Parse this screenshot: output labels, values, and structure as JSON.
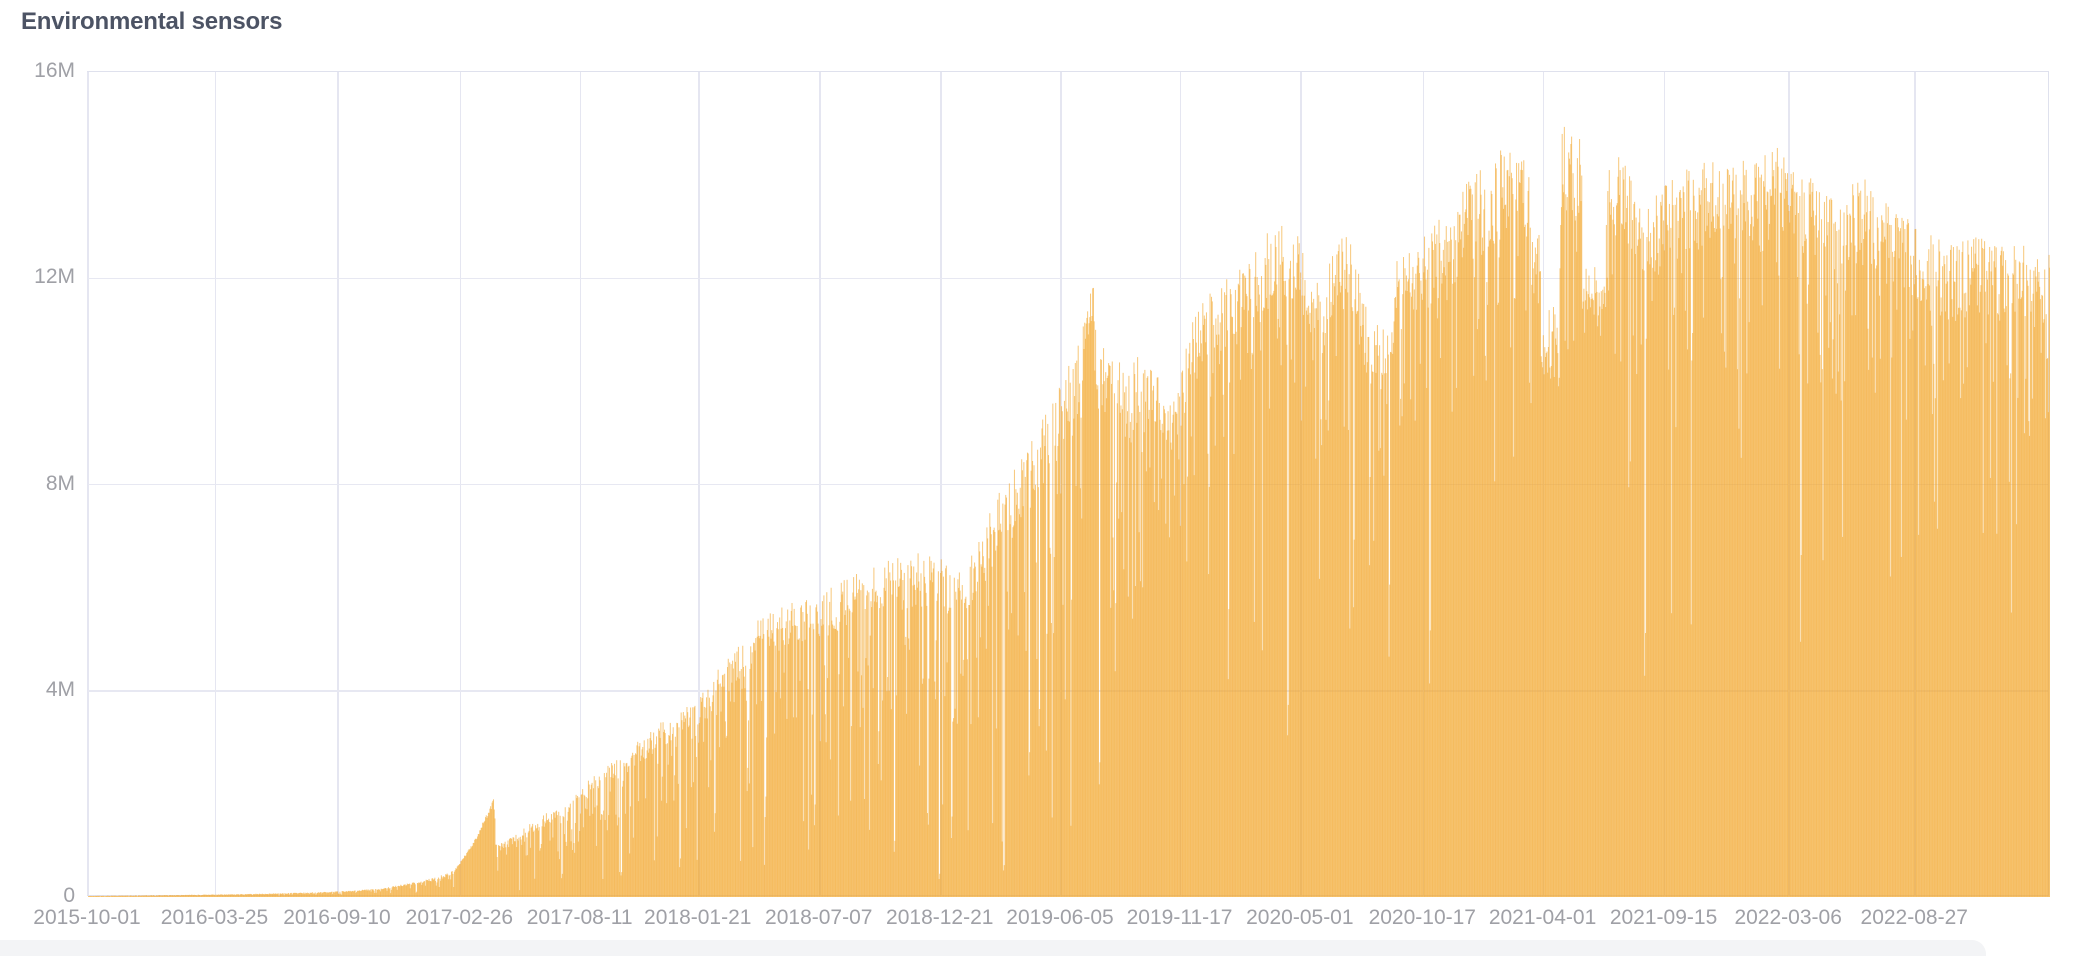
{
  "title": "Environmental sensors",
  "colors": {
    "background": "#FFFFFF",
    "bar": "#F2A425",
    "bar_opacity": 0.6,
    "grid": "#E5E6F1",
    "axis_border": "#DFE1ED",
    "title_text": "#4C5364",
    "tick_text": "#9FA0A6",
    "bottom_band": "#F3F4F6"
  },
  "chart_data": {
    "type": "bar",
    "title": "Environmental sensors",
    "series_name": "Environmental sensors",
    "legend": "none",
    "grid": "on",
    "bar_granularity": "daily",
    "x_start": "2015-10-01",
    "x_end": "2023-03-01",
    "ylim_m": [
      0,
      16
    ],
    "y_ticks": [
      [
        "0",
        0
      ],
      [
        "4M",
        4
      ],
      [
        "8M",
        8
      ],
      [
        "12M",
        12
      ],
      [
        "16M",
        16
      ]
    ],
    "x_ticks": [
      "2015-10-01",
      "2016-03-25",
      "2016-09-10",
      "2017-02-26",
      "2017-08-11",
      "2018-01-21",
      "2018-07-07",
      "2018-12-21",
      "2019-06-05",
      "2019-11-17",
      "2020-05-01",
      "2020-10-17",
      "2021-04-01",
      "2021-09-15",
      "2022-03-06",
      "2022-08-27"
    ],
    "envelope_m": [
      [
        "2015-10-01",
        0.02
      ],
      [
        "2016-01-01",
        0.035
      ],
      [
        "2016-03-25",
        0.05
      ],
      [
        "2016-06-15",
        0.07
      ],
      [
        "2016-09-10",
        0.11
      ],
      [
        "2016-11-10",
        0.17
      ],
      [
        "2016-12-20",
        0.28
      ],
      [
        "2017-01-25",
        0.4
      ],
      [
        "2017-02-17",
        0.52
      ],
      [
        "2017-03-15",
        1.05
      ],
      [
        "2017-04-12",
        1.9
      ],
      [
        "2017-04-17",
        1.0
      ],
      [
        "2017-05-15",
        1.25
      ],
      [
        "2017-06-15",
        1.55
      ],
      [
        "2017-07-20",
        1.85
      ],
      [
        "2017-08-20",
        2.25
      ],
      [
        "2017-09-25",
        2.65
      ],
      [
        "2017-11-01",
        3.1
      ],
      [
        "2017-12-10",
        3.55
      ],
      [
        "2018-01-24",
        3.95
      ],
      [
        "2018-03-01",
        4.7
      ],
      [
        "2018-04-17",
        5.45
      ],
      [
        "2018-05-25",
        5.7
      ],
      [
        "2018-06-29",
        5.9
      ],
      [
        "2018-08-10",
        6.2
      ],
      [
        "2018-09-29",
        6.5
      ],
      [
        "2018-11-23",
        6.7
      ],
      [
        "2019-01-18",
        6.45
      ],
      [
        "2019-02-15",
        7.0
      ],
      [
        "2019-03-04",
        7.7
      ],
      [
        "2019-04-05",
        8.4
      ],
      [
        "2019-05-08",
        9.2
      ],
      [
        "2019-06-10",
        10.2
      ],
      [
        "2019-07-05",
        11.1
      ],
      [
        "2019-07-18",
        12.0
      ],
      [
        "2019-07-26",
        10.9
      ],
      [
        "2019-08-10",
        10.5
      ],
      [
        "2019-09-05",
        10.3
      ],
      [
        "2019-09-25",
        10.6
      ],
      [
        "2019-10-18",
        10.3
      ],
      [
        "2019-10-25",
        9.8
      ],
      [
        "2019-11-12",
        9.7
      ],
      [
        "2019-11-20",
        10.5
      ],
      [
        "2019-12-05",
        11.3
      ],
      [
        "2019-12-23",
        11.8
      ],
      [
        "2020-01-28",
        12.25
      ],
      [
        "2020-02-21",
        12.7
      ],
      [
        "2020-03-20",
        12.95
      ],
      [
        "2020-04-15",
        13.25
      ],
      [
        "2020-05-18",
        12.0
      ],
      [
        "2020-06-01",
        11.8
      ],
      [
        "2020-06-15",
        13.0
      ],
      [
        "2020-07-10",
        12.75
      ],
      [
        "2020-08-02",
        11.25
      ],
      [
        "2020-08-24",
        11.1
      ],
      [
        "2020-09-10",
        12.4
      ],
      [
        "2020-10-10",
        12.65
      ],
      [
        "2020-11-01",
        13.1
      ],
      [
        "2020-11-24",
        13.3
      ],
      [
        "2020-12-15",
        13.9
      ],
      [
        "2021-01-18",
        14.3
      ],
      [
        "2021-02-05",
        14.55
      ],
      [
        "2021-03-08",
        14.45
      ],
      [
        "2021-03-15",
        13.4
      ],
      [
        "2021-03-26",
        13.0
      ],
      [
        "2021-04-24",
        14.7
      ],
      [
        "2021-04-30",
        15.3
      ],
      [
        "2021-05-12",
        14.9
      ],
      [
        "2021-05-24",
        14.6
      ],
      [
        "2021-06-27",
        14.6
      ],
      [
        "2021-07-20",
        14.4
      ],
      [
        "2021-08-08",
        13.8
      ],
      [
        "2021-08-25",
        13.5
      ],
      [
        "2021-09-20",
        13.95
      ],
      [
        "2021-10-20",
        14.2
      ],
      [
        "2021-11-15",
        14.35
      ],
      [
        "2021-12-20",
        14.3
      ],
      [
        "2022-01-20",
        14.4
      ],
      [
        "2022-02-20",
        14.55
      ],
      [
        "2022-03-10",
        14.4
      ],
      [
        "2022-04-10",
        13.85
      ],
      [
        "2022-05-05",
        13.55
      ],
      [
        "2022-06-05",
        13.9
      ],
      [
        "2022-06-25",
        13.95
      ],
      [
        "2022-07-20",
        13.4
      ],
      [
        "2022-08-21",
        13.15
      ],
      [
        "2022-09-20",
        12.8
      ],
      [
        "2022-10-20",
        12.65
      ],
      [
        "2022-11-20",
        12.85
      ],
      [
        "2022-12-20",
        12.6
      ],
      [
        "2023-01-20",
        12.7
      ],
      [
        "2023-02-15",
        12.45
      ],
      [
        "2023-03-01",
        12.9
      ]
    ],
    "dip_windows": [
      {
        "from": "2021-03-28",
        "to": "2021-04-22",
        "value_m": 11.0
      },
      {
        "from": "2021-05-26",
        "to": "2021-06-25",
        "value_m": 12.1
      }
    ],
    "solid_windows": [
      {
        "from": "2017-02-17",
        "to": "2017-04-14"
      },
      {
        "from": "2019-07-05",
        "to": "2019-07-20"
      }
    ],
    "deep_dips_m": [
      [
        "2016-12-26",
        0.08
      ],
      [
        "2017-07-15",
        0.35
      ],
      [
        "2017-10-05",
        0.4
      ],
      [
        "2017-12-25",
        0.6
      ],
      [
        "2018-02-11",
        1.3
      ],
      [
        "2018-03-28",
        2.0
      ],
      [
        "2018-04-22",
        1.5
      ],
      [
        "2018-06-29",
        1.4
      ],
      [
        "2018-09-25",
        2.5
      ],
      [
        "2018-10-17",
        0.9
      ],
      [
        "2018-12-18",
        0.35
      ],
      [
        "2019-01-04",
        1.2
      ],
      [
        "2019-03-17",
        0.5
      ],
      [
        "2019-04-21",
        2.3
      ],
      [
        "2019-07-27",
        2.1
      ],
      [
        "2019-08-18",
        4.5
      ],
      [
        "2019-11-25",
        6.4
      ],
      [
        "2019-12-25",
        6.1
      ],
      [
        "2020-01-21",
        4.4
      ],
      [
        "2020-04-12",
        3.1
      ],
      [
        "2020-07-12",
        5.5
      ],
      [
        "2020-08-30",
        4.8
      ],
      [
        "2020-10-25",
        4.1
      ],
      [
        "2020-12-25",
        9.8
      ],
      [
        "2021-08-18",
        4.2
      ],
      [
        "2021-12-26",
        9.0
      ],
      [
        "2022-03-21",
        5.1
      ],
      [
        "2022-09-22",
        7.4
      ],
      [
        "2023-01-03",
        7.8
      ]
    ],
    "noise_seed": 42,
    "noise_eras": [
      {
        "until": "2017-02-17",
        "deep_p": 0.03,
        "deep": [
          0.3,
          0.3
        ],
        "mod_p": 0.18,
        "mod": [
          0.55,
          0.27
        ],
        "base": [
          0.82,
          0.18
        ]
      },
      {
        "until": "2019-10-01",
        "deep_p": 0.045,
        "deep": [
          0.1,
          0.4
        ],
        "mod_p": 0.2,
        "mod": [
          0.5,
          0.32
        ],
        "base": [
          0.84,
          0.16
        ]
      },
      {
        "until": "2023-03-01",
        "deep_p": 0.022,
        "deep": [
          0.35,
          0.3
        ],
        "mod_p": 0.16,
        "mod": [
          0.7,
          0.18
        ],
        "base": [
          0.88,
          0.12
        ]
      }
    ]
  }
}
